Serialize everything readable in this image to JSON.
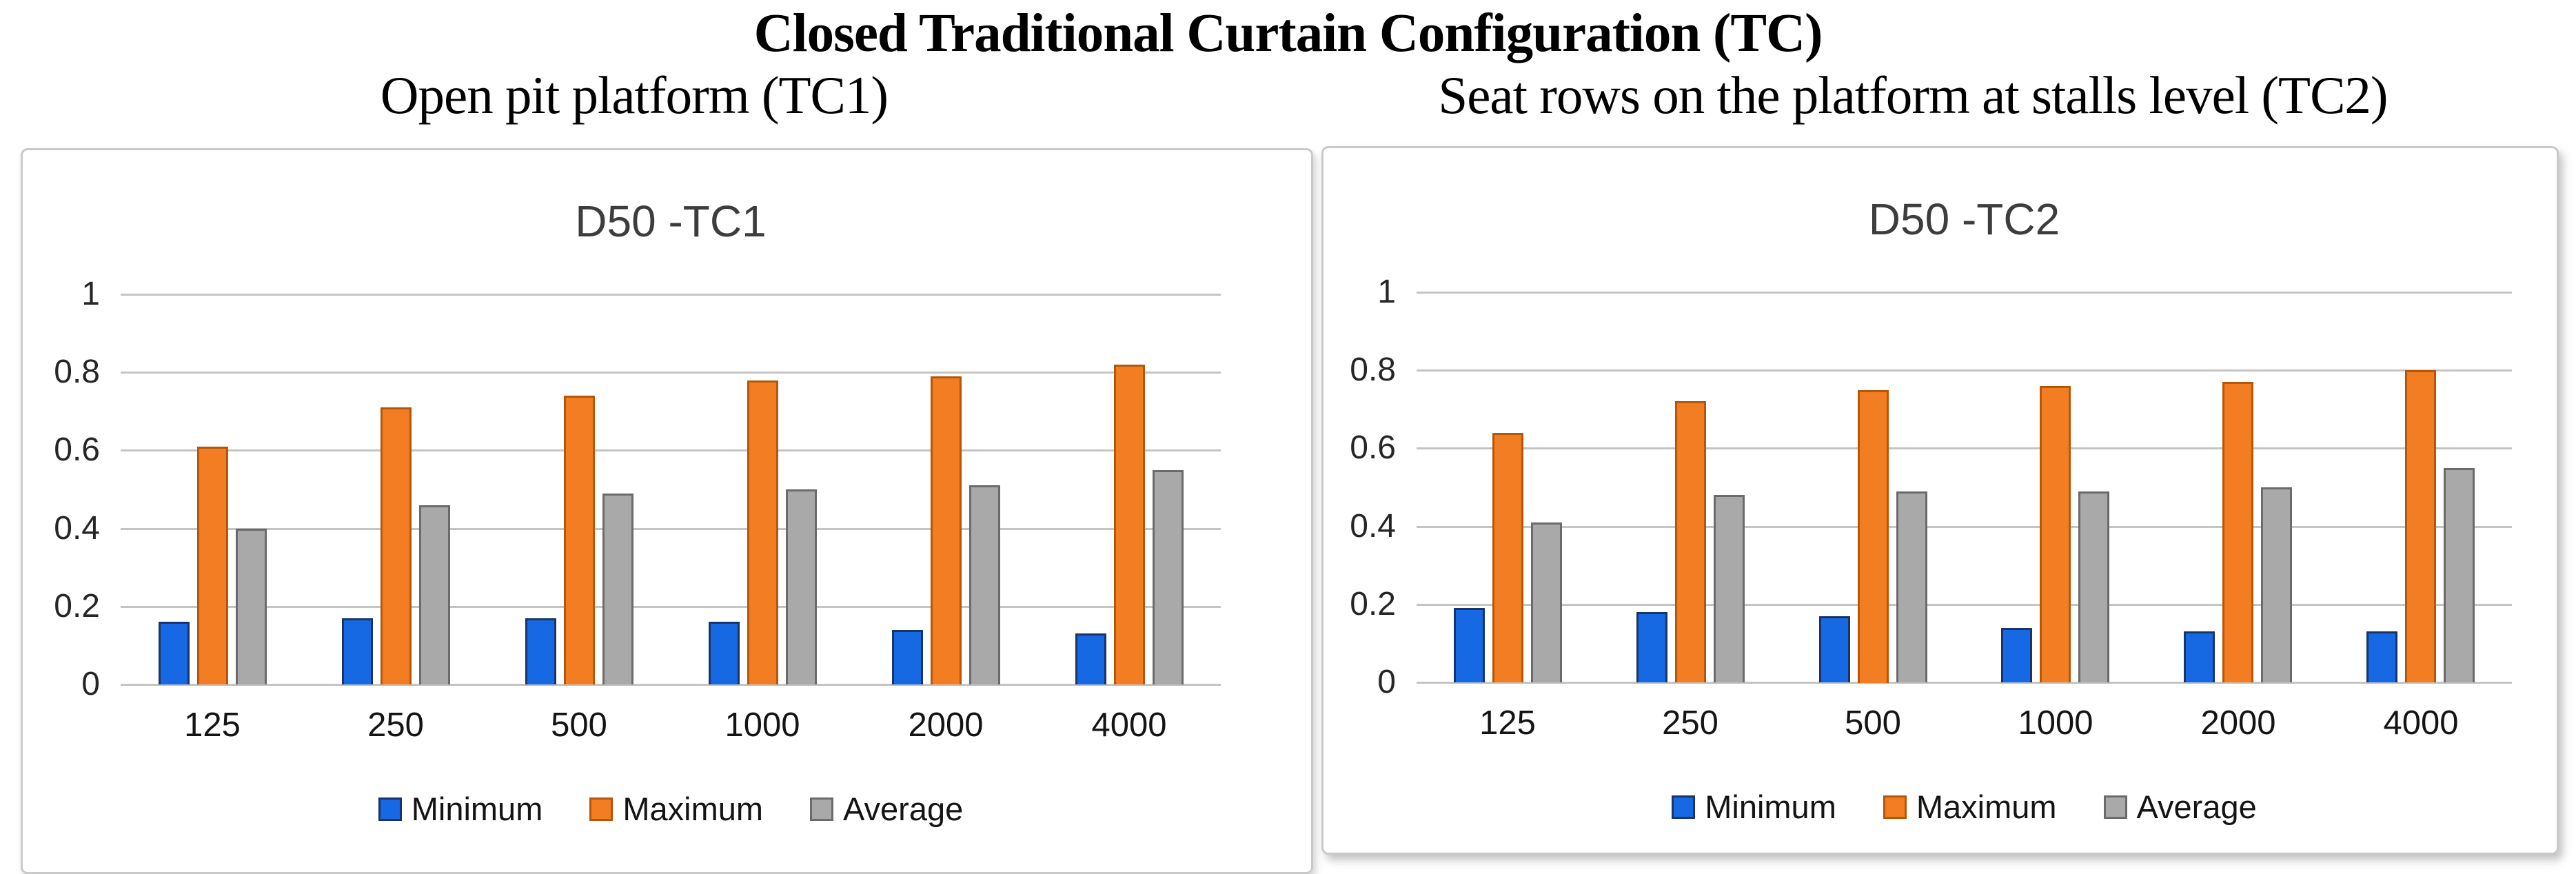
{
  "header": {
    "title": "Closed Traditional Curtain Configuration (TC)",
    "subtitle_left": "Open pit platform (TC1)",
    "subtitle_right": "Seat rows on the platform at stalls level (TC2)"
  },
  "chart_data": [
    {
      "type": "bar",
      "title": "D50 -TC1",
      "subtitle": "Open pit platform (TC1)",
      "categories": [
        "125",
        "250",
        "500",
        "1000",
        "2000",
        "4000"
      ],
      "series": [
        {
          "name": "Minimum",
          "color": "#1668e3",
          "border_color": "#17356b",
          "values": [
            0.16,
            0.17,
            0.17,
            0.16,
            0.14,
            0.13
          ]
        },
        {
          "name": "Maximum",
          "color": "#f27d23",
          "border_color": "#b65708",
          "values": [
            0.61,
            0.71,
            0.74,
            0.78,
            0.79,
            0.82
          ]
        },
        {
          "name": "Average",
          "color": "#a9a9a9",
          "border_color": "#6b6b6b",
          "values": [
            0.4,
            0.46,
            0.49,
            0.5,
            0.51,
            0.55
          ]
        }
      ],
      "xlabel": "",
      "ylabel": "",
      "ylim": [
        0,
        1
      ],
      "y_tick_step": 0.2,
      "y_ticks": [
        "0",
        "0.2",
        "0.4",
        "0.6",
        "0.8",
        "1"
      ],
      "grid": true,
      "grid_color": "#c4c4c4",
      "legend_position": "bottom",
      "legend": [
        "Minimum",
        "Maximum",
        "Average"
      ]
    },
    {
      "type": "bar",
      "title": "D50 -TC2",
      "subtitle": "Seat rows on the platform at stalls level (TC2)",
      "categories": [
        "125",
        "250",
        "500",
        "1000",
        "2000",
        "4000"
      ],
      "series": [
        {
          "name": "Minimum",
          "color": "#1668e3",
          "border_color": "#17356b",
          "values": [
            0.19,
            0.18,
            0.17,
            0.14,
            0.13,
            0.13
          ]
        },
        {
          "name": "Maximum",
          "color": "#f27d23",
          "border_color": "#b65708",
          "values": [
            0.64,
            0.72,
            0.75,
            0.76,
            0.77,
            0.8
          ]
        },
        {
          "name": "Average",
          "color": "#a9a9a9",
          "border_color": "#6b6b6b",
          "values": [
            0.41,
            0.48,
            0.49,
            0.49,
            0.5,
            0.55
          ]
        }
      ],
      "xlabel": "",
      "ylabel": "",
      "ylim": [
        0,
        1
      ],
      "y_tick_step": 0.2,
      "y_ticks": [
        "0",
        "0.2",
        "0.4",
        "0.6",
        "0.8",
        "1"
      ],
      "grid": true,
      "grid_color": "#c4c4c4",
      "legend_position": "bottom",
      "legend": [
        "Minimum",
        "Maximum",
        "Average"
      ]
    }
  ]
}
